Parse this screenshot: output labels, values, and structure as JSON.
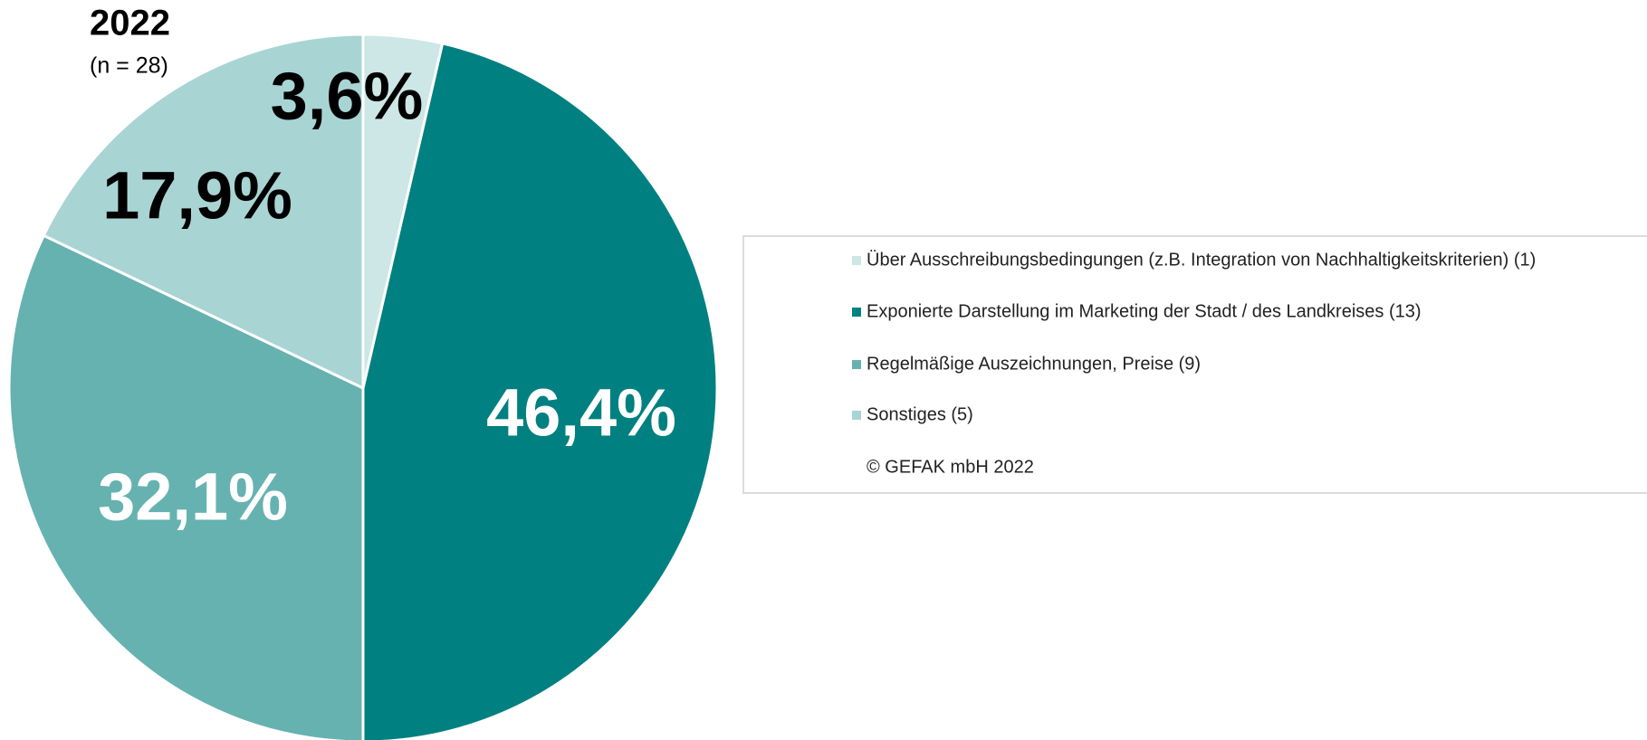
{
  "chart_data": {
    "type": "pie",
    "title": "2022",
    "subtitle": "(n = 28)",
    "categories": [
      "Über Ausschreibungsbedingungen (z.B. Integration von Nachhaltigkeitskriterien) (1)",
      "Exponierte Darstellung im Marketing der Stadt / des Landkreises (13)",
      "Regelmäßige Auszeichnungen, Preise (9)",
      "Sonstiges (5)"
    ],
    "values": [
      3.6,
      46.4,
      32.1,
      17.9
    ],
    "value_labels": [
      "3,6%",
      "46,4%",
      "32,1%",
      "17,9%"
    ],
    "colors": [
      "#cde6e6",
      "#008080",
      "#66b2b0",
      "#a9d4d4"
    ],
    "source": "© GEFAK mbH 2022"
  }
}
